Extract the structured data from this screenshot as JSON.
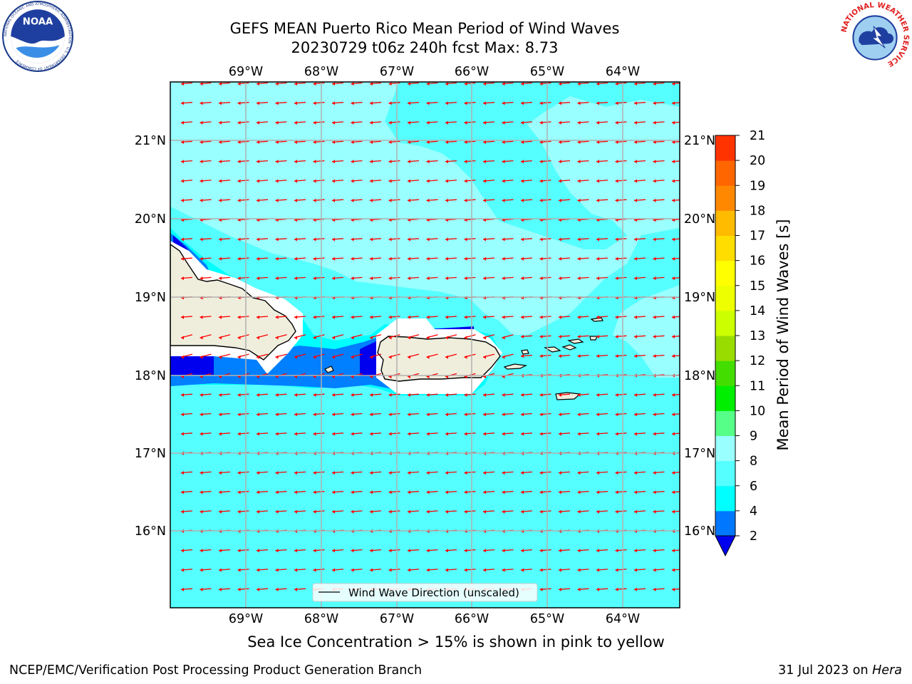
{
  "header": {
    "title_line1": "GEFS MEAN Puerto Rico Mean Period of Wind Waves",
    "title_line2": "20230729 t06z 240h fcst   Max: 8.73"
  },
  "logos": {
    "left_name": "noaa-logo",
    "left_text": "NOAA",
    "left_ring_text": "NATIONAL OCEANIC AND ATMOSPHERIC ADMINISTRATION · U.S. DEPARTMENT OF COMMERCE",
    "right_name": "nws-logo",
    "right_ring_text": "NATIONAL WEATHER SERVICE"
  },
  "map": {
    "lon_ticks": [
      "69°W",
      "68°W",
      "67°W",
      "66°W",
      "65°W",
      "64°W"
    ],
    "lat_ticks": [
      "21°N",
      "20°N",
      "19°N",
      "18°N",
      "17°N",
      "16°N"
    ],
    "legend_label": "Wind Wave Direction (unscaled)",
    "colors": {
      "ocean_main": "#55ffff",
      "ocean_light": "#99ffff",
      "ocean_cyan": "#00ffff",
      "ocean_blue": "#007fff",
      "ocean_dark": "#0000ee",
      "land": "#efeedd",
      "arrow": "#ff0000",
      "grid": "#b0b0b0"
    }
  },
  "colorbar": {
    "label": "Mean Period of Wind Waves [s]",
    "ticks": [
      "2",
      "4",
      "6",
      "8",
      "9",
      "10",
      "11",
      "12",
      "13",
      "14",
      "15",
      "16",
      "17",
      "18",
      "19",
      "20",
      "21"
    ],
    "colors": [
      "#0077ff",
      "#00ffff",
      "#55ffff",
      "#99ffff",
      "#55ff88",
      "#00ee00",
      "#44dd00",
      "#99dd00",
      "#ccff00",
      "#eeff00",
      "#ffff00",
      "#ffdd00",
      "#ffbb00",
      "#ff8800",
      "#ff6600",
      "#ff3300"
    ],
    "under_color": "#0000ee"
  },
  "footer": {
    "sea_ice_note": "Sea Ice Concentration > 15% is shown in pink to yellow",
    "left": "NCEP/EMC/Verification Post Processing Product Generation Branch",
    "right_prefix": "31 Jul 2023 on ",
    "right_host": "Hera"
  }
}
